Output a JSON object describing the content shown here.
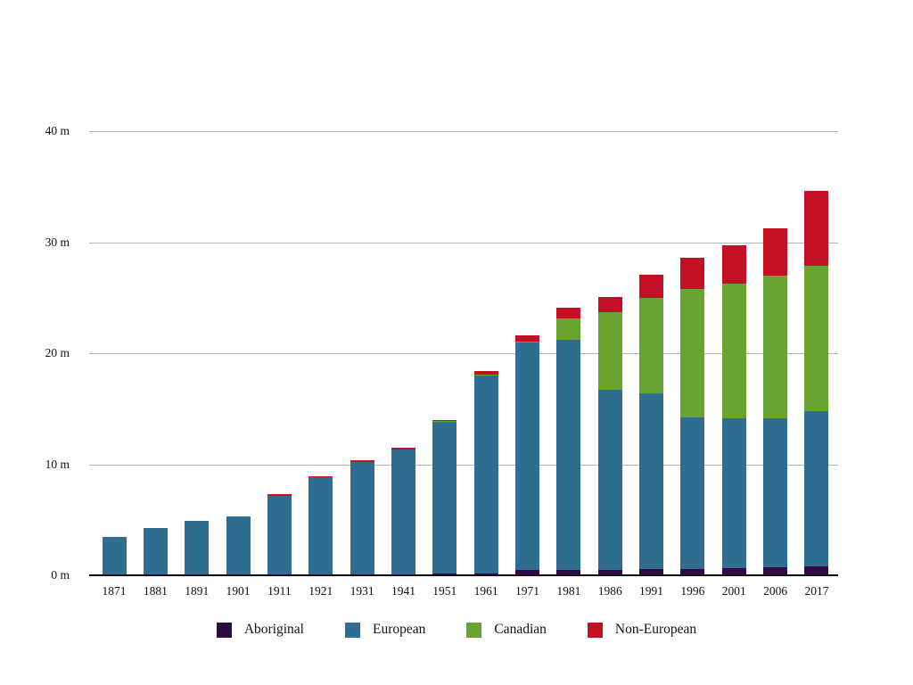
{
  "page": {
    "background": "#ffffff",
    "text_color": "#111111",
    "gridline_color": "#b5b5b5",
    "axis_color": "#000000"
  },
  "chart_data": {
    "type": "bar",
    "stacked": true,
    "title": "",
    "xlabel": "",
    "ylabel": "",
    "ylim": [
      0,
      40
    ],
    "grid": "horizontal",
    "legend_position": "bottom",
    "y_ticks": [
      {
        "value": 0,
        "label": "0 m"
      },
      {
        "value": 10,
        "label": "10 m"
      },
      {
        "value": 20,
        "label": "20 m"
      },
      {
        "value": 30,
        "label": "30 m"
      },
      {
        "value": 40,
        "label": "40 m"
      }
    ],
    "categories": [
      "1871",
      "1881",
      "1891",
      "1901",
      "1911",
      "1921",
      "1931",
      "1941",
      "1951",
      "1961",
      "1971",
      "1981",
      "1986",
      "1991",
      "1996",
      "2001",
      "2006",
      "2017"
    ],
    "series": [
      {
        "name": "Aboriginal",
        "color": "#2e0b41",
        "values": [
          0.05,
          0.1,
          0.1,
          0.1,
          0.1,
          0.1,
          0.1,
          0.1,
          0.15,
          0.2,
          0.45,
          0.45,
          0.5,
          0.6,
          0.6,
          0.65,
          0.7,
          0.8
        ]
      },
      {
        "name": "European",
        "color": "#2f6d91",
        "values": [
          3.43,
          4.18,
          4.8,
          5.2,
          7.03,
          8.74,
          10.14,
          11.21,
          13.68,
          17.77,
          20.53,
          20.75,
          16.2,
          15.8,
          13.6,
          13.45,
          13.45,
          13.95
        ]
      },
      {
        "name": "Canadian",
        "color": "#69a433",
        "values": [
          0,
          0,
          0,
          0,
          0,
          0,
          0,
          0,
          0.05,
          0.1,
          0.05,
          1.9,
          7.0,
          8.55,
          11.55,
          12.2,
          12.85,
          13.15
        ]
      },
      {
        "name": "Non-European",
        "color": "#c41026",
        "values": [
          0,
          0,
          0,
          0,
          0.15,
          0.1,
          0.15,
          0.15,
          0.1,
          0.3,
          0.6,
          1.0,
          1.35,
          2.15,
          2.85,
          3.4,
          4.25,
          6.7
        ]
      }
    ],
    "totals": [
      3.48,
      4.28,
      4.9,
      5.3,
      7.28,
      8.94,
      10.39,
      11.46,
      13.98,
      18.37,
      21.63,
      24.1,
      25.05,
      27.1,
      28.6,
      29.7,
      31.25,
      34.6
    ]
  }
}
